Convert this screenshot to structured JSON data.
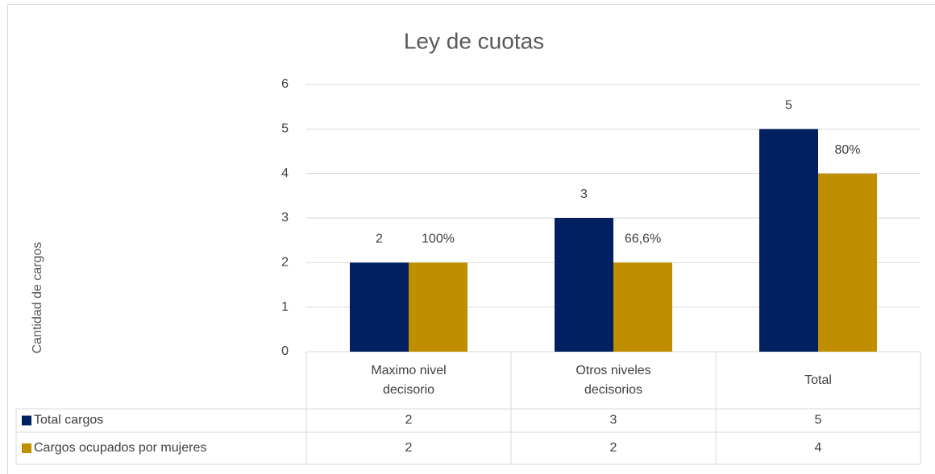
{
  "chart_data": {
    "type": "bar",
    "title": "Ley de cuotas",
    "y_label": "Cantidad de cargos",
    "categories": [
      "Maximo nivel decisorio",
      "Otros niveles decisorios",
      "Total"
    ],
    "series": [
      {
        "name": "Total cargos",
        "color": "#002060",
        "values": [
          2,
          3,
          5
        ]
      },
      {
        "name": "Cargos ocupados por mujeres",
        "color": "#bf8f00",
        "values": [
          2,
          2,
          4
        ]
      }
    ],
    "annotations": [
      "100%",
      "66,6%",
      "80%"
    ],
    "ylim": [
      0,
      6
    ],
    "yticks": [
      0,
      1,
      2,
      3,
      4,
      5,
      6
    ],
    "grid": true
  }
}
